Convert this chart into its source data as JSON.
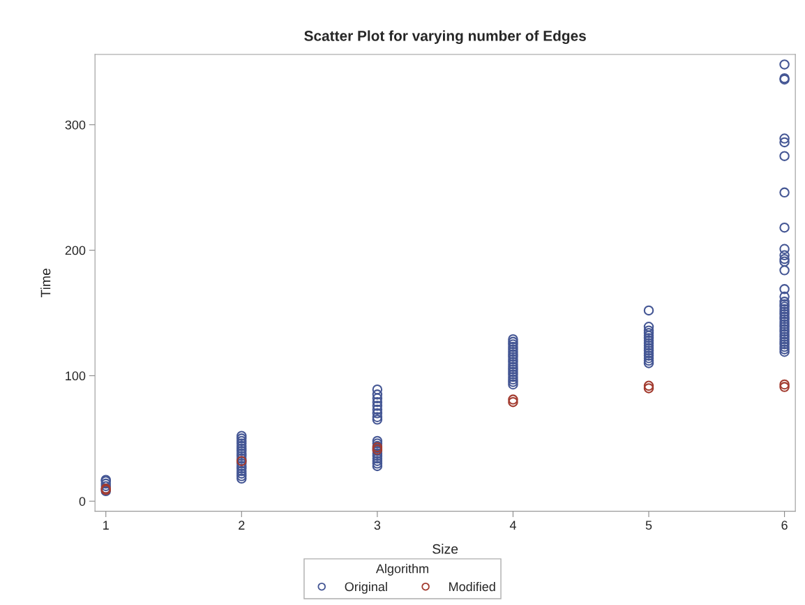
{
  "chart_data": {
    "type": "scatter",
    "title": "Scatter Plot for varying number of Edges",
    "xlabel": "Size",
    "ylabel": "Time",
    "legend_title": "Algorithm",
    "legend": "bottom",
    "marker": "circle",
    "xlim": [
      0.92,
      6.08
    ],
    "ylim": [
      -8,
      356
    ],
    "xticks": [
      1,
      2,
      3,
      4,
      5,
      6
    ],
    "yticks": [
      0,
      100,
      200,
      300
    ],
    "series": [
      {
        "name": "Original",
        "color": "#445694",
        "x": [
          1,
          1,
          1,
          1,
          1,
          1,
          2,
          2,
          2,
          2,
          2,
          2,
          2,
          2,
          2,
          2,
          2,
          2,
          2,
          2,
          2,
          2,
          2,
          2,
          3,
          3,
          3,
          3,
          3,
          3,
          3,
          3,
          3,
          3,
          3,
          3,
          3,
          3,
          3,
          3,
          3,
          3,
          3,
          3,
          4,
          4,
          4,
          4,
          4,
          4,
          4,
          4,
          4,
          4,
          4,
          4,
          4,
          4,
          4,
          4,
          4,
          4,
          4,
          5,
          5,
          5,
          5,
          5,
          5,
          5,
          5,
          5,
          5,
          5,
          5,
          5,
          5,
          5,
          5,
          6,
          6,
          6,
          6,
          6,
          6,
          6,
          6,
          6,
          6,
          6,
          6,
          6,
          6,
          6,
          6,
          6,
          6,
          6,
          6,
          6,
          6,
          6,
          6,
          6,
          6,
          6,
          6,
          6,
          6,
          6,
          6,
          6,
          6,
          6,
          6
        ],
        "values": [
          8,
          10,
          12,
          14,
          16,
          17,
          18,
          20,
          22,
          24,
          26,
          28,
          30,
          32,
          34,
          36,
          38,
          40,
          42,
          44,
          46,
          48,
          50,
          52,
          28,
          30,
          32,
          34,
          36,
          38,
          40,
          42,
          44,
          46,
          48,
          65,
          67,
          70,
          73,
          76,
          79,
          82,
          85,
          89,
          93,
          95,
          97,
          99,
          101,
          103,
          105,
          107,
          109,
          111,
          113,
          115,
          117,
          119,
          121,
          123,
          125,
          127,
          129,
          110,
          112,
          114,
          116,
          118,
          120,
          122,
          124,
          126,
          128,
          130,
          132,
          134,
          136,
          139,
          152,
          348,
          337,
          336,
          289,
          286,
          275,
          246,
          218,
          201,
          196,
          193,
          191,
          184,
          169,
          163,
          119,
          121,
          123,
          125,
          127,
          129,
          131,
          133,
          135,
          137,
          139,
          141,
          143,
          145,
          147,
          149,
          151,
          153,
          155,
          157,
          159
        ]
      },
      {
        "name": "Modified",
        "color": "#a23a2e",
        "x": [
          1,
          1,
          2,
          3,
          3,
          4,
          4,
          5,
          5,
          6,
          6
        ],
        "values": [
          9,
          10,
          32,
          41,
          43,
          79,
          81,
          90,
          92,
          91,
          93
        ]
      }
    ]
  }
}
